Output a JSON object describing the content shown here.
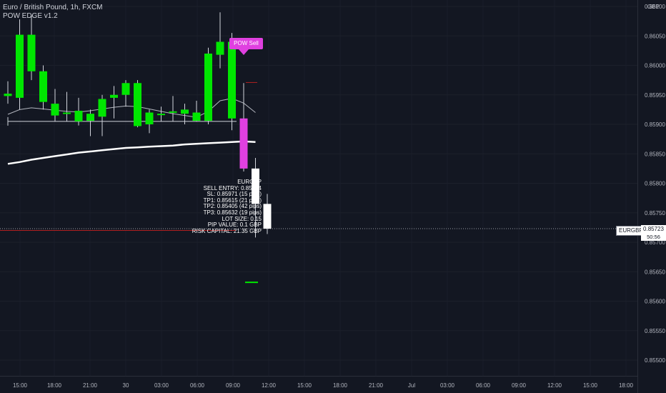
{
  "header": {
    "title": "Euro / British Pound, 1h, FXCM",
    "indicator": "POW EDGE v1.2"
  },
  "axis_currency": "GBP",
  "signal_label": "POW Sell",
  "trade_info": [
    "EURGBP",
    "SELL ENTRY: 0.85824",
    "SL: 0.85971 (15 pips)",
    "TP1: 0.85615 (21 pips)",
    "TP2: 0.85405 (42 pips)",
    "TP3: 0.85632 (19 pips)",
    "LOT SIZE: 0.15",
    "PIP VALUE: 0.1 GBP",
    "RISK CAPITAL: 21.35 GBP"
  ],
  "last_price": {
    "symbol": "EURGBP",
    "price": "0.85723",
    "countdown": "50:56"
  },
  "colors": {
    "background": "#131722",
    "bull": "#00e600",
    "bear": "#00e600",
    "signal_candle": "#e040e0",
    "white_candle": "#ffffff",
    "axis_text": "#b2b5be",
    "sl_line": "#b02020",
    "tp_line": "#00e600"
  },
  "chart_data": {
    "type": "candlestick",
    "x_tick_labels": [
      "15:00",
      "18:00",
      "21:00",
      "30",
      "03:00",
      "06:00",
      "09:00",
      "12:00",
      "15:00",
      "18:00",
      "21:00",
      "Jul",
      "03:00",
      "06:00",
      "09:00",
      "12:00",
      "15:00",
      "18:00"
    ],
    "y_tick_labels": [
      "0.86100",
      "0.86050",
      "0.86000",
      "0.85950",
      "0.85900",
      "0.85850",
      "0.85800",
      "0.85750",
      "0.85700",
      "0.85650",
      "0.85600",
      "0.85550",
      "0.85500"
    ],
    "y_range": [
      0.85465,
      0.86115
    ],
    "candles": [
      {
        "o": 0.85948,
        "h": 0.85973,
        "l": 0.85935,
        "c": 0.85952,
        "style": "green"
      },
      {
        "o": 0.85945,
        "h": 0.86078,
        "l": 0.85925,
        "c": 0.86052,
        "style": "green"
      },
      {
        "o": 0.86052,
        "h": 0.86085,
        "l": 0.85975,
        "c": 0.8599,
        "style": "green"
      },
      {
        "o": 0.8599,
        "h": 0.86,
        "l": 0.85925,
        "c": 0.85938,
        "style": "green"
      },
      {
        "o": 0.85935,
        "h": 0.8596,
        "l": 0.85905,
        "c": 0.85915,
        "style": "green"
      },
      {
        "o": 0.8592,
        "h": 0.85955,
        "l": 0.85905,
        "c": 0.85918,
        "style": "green"
      },
      {
        "o": 0.85923,
        "h": 0.85945,
        "l": 0.85898,
        "c": 0.85905,
        "style": "green"
      },
      {
        "o": 0.85906,
        "h": 0.85925,
        "l": 0.8588,
        "c": 0.85918,
        "style": "green"
      },
      {
        "o": 0.85913,
        "h": 0.8595,
        "l": 0.8588,
        "c": 0.85943,
        "style": "green"
      },
      {
        "o": 0.85945,
        "h": 0.85965,
        "l": 0.8591,
        "c": 0.8595,
        "style": "green"
      },
      {
        "o": 0.8595,
        "h": 0.85975,
        "l": 0.8593,
        "c": 0.8597,
        "style": "green"
      },
      {
        "o": 0.8597,
        "h": 0.85975,
        "l": 0.85895,
        "c": 0.85897,
        "style": "green"
      },
      {
        "o": 0.859,
        "h": 0.85925,
        "l": 0.85885,
        "c": 0.8592,
        "style": "green"
      },
      {
        "o": 0.85918,
        "h": 0.8593,
        "l": 0.85905,
        "c": 0.85918,
        "style": "green"
      },
      {
        "o": 0.8592,
        "h": 0.85948,
        "l": 0.85905,
        "c": 0.85922,
        "style": "green"
      },
      {
        "o": 0.85918,
        "h": 0.85935,
        "l": 0.859,
        "c": 0.85925,
        "style": "green"
      },
      {
        "o": 0.8592,
        "h": 0.8594,
        "l": 0.85905,
        "c": 0.85906,
        "style": "green"
      },
      {
        "o": 0.85906,
        "h": 0.8603,
        "l": 0.859,
        "c": 0.8602,
        "style": "green"
      },
      {
        "o": 0.86018,
        "h": 0.8609,
        "l": 0.85995,
        "c": 0.8604,
        "style": "green"
      },
      {
        "o": 0.8604,
        "h": 0.86055,
        "l": 0.8589,
        "c": 0.8591,
        "style": "green"
      },
      {
        "o": 0.8591,
        "h": 0.8597,
        "l": 0.8582,
        "c": 0.85825,
        "style": "magenta"
      },
      {
        "o": 0.85825,
        "h": 0.85843,
        "l": 0.85708,
        "c": 0.85765,
        "style": "white"
      },
      {
        "o": 0.85765,
        "h": 0.85782,
        "l": 0.85714,
        "c": 0.85723,
        "style": "white"
      }
    ],
    "ma_short": [
      0.85917,
      0.85925,
      0.85928,
      0.85926,
      0.85924,
      0.85922,
      0.85921,
      0.85923,
      0.85926,
      0.85929,
      0.85931,
      0.8593,
      0.85926,
      0.85922,
      0.85918,
      0.85915,
      0.85912,
      0.85922,
      0.8594,
      0.85944,
      0.85936,
      0.8592
    ],
    "ma_long": [
      0.85833,
      0.85836,
      0.8584,
      0.85843,
      0.85846,
      0.85849,
      0.85852,
      0.85854,
      0.85856,
      0.85858,
      0.8586,
      0.85861,
      0.85862,
      0.85863,
      0.85864,
      0.85866,
      0.85867,
      0.85868,
      0.85869,
      0.8587,
      0.85871,
      0.8587
    ],
    "range_line_price": 0.85905,
    "sl_level": 0.85971,
    "tp_level": 0.85632,
    "red_line_price": 0.8572,
    "last_price": 0.85723
  }
}
